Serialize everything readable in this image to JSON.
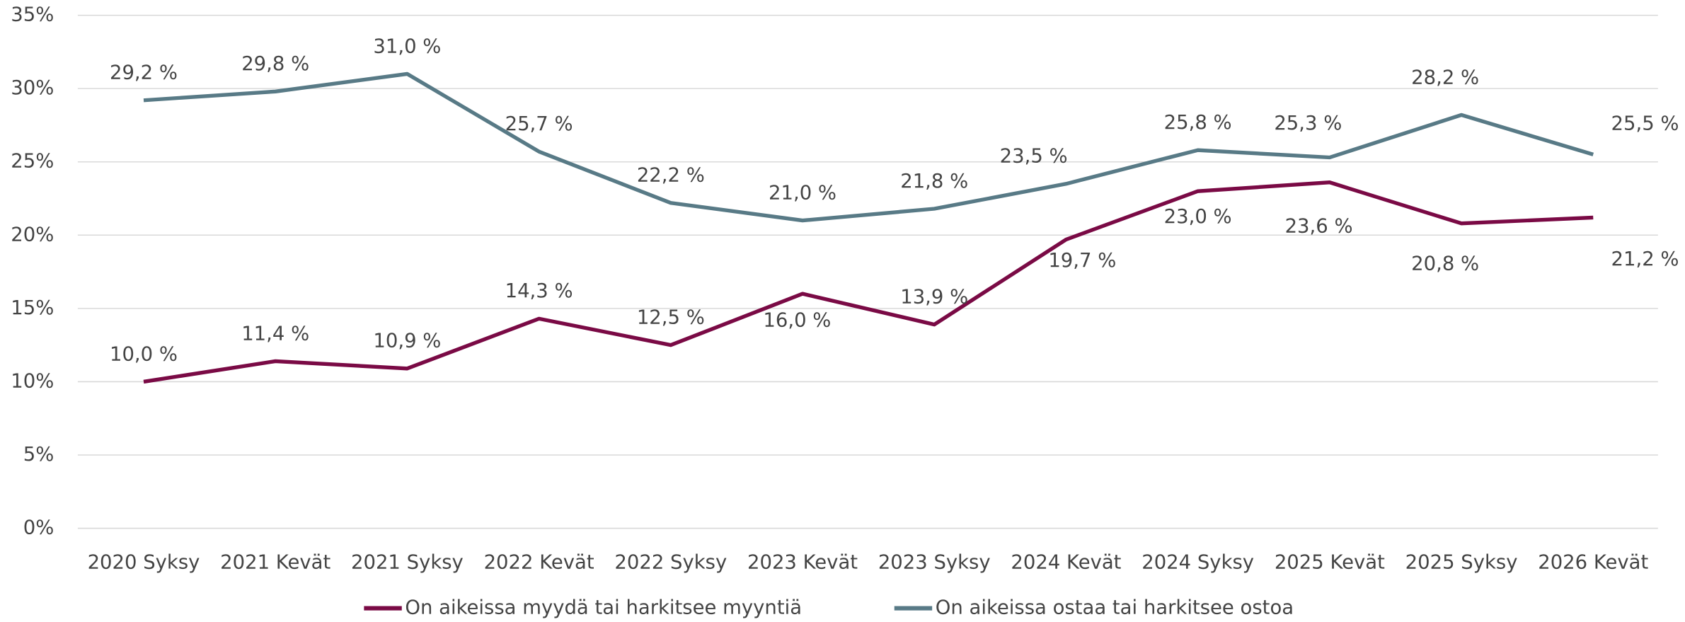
{
  "chart_data": {
    "type": "line",
    "categories": [
      "2020 Syksy",
      "2021 Kevät",
      "2021 Syksy",
      "2022 Kevät",
      "2022 Syksy",
      "2023 Kevät",
      "2023 Syksy",
      "2024 Kevät",
      "2024 Syksy",
      "2025 Kevät",
      "2025 Syksy",
      "2026 Kevät"
    ],
    "series": [
      {
        "name": "On aikeissa myydä tai harkitsee myyntiä",
        "color": "#7a0a45",
        "values": [
          10.0,
          11.4,
          10.9,
          14.3,
          12.5,
          16.0,
          13.9,
          19.7,
          23.0,
          23.6,
          20.8,
          21.2
        ],
        "value_labels": [
          "10,0 %",
          "11,4 %",
          "10,9 %",
          "14,3 %",
          "12,5 %",
          "16,0 %",
          "13,9 %",
          "19,7 %",
          "23,0 %",
          "23,6 %",
          "20,8 %",
          "21,2 %"
        ]
      },
      {
        "name": "On aikeissa ostaa tai harkitsee ostoa",
        "color": "#587a86",
        "values": [
          29.2,
          29.8,
          31.0,
          25.7,
          22.2,
          21.0,
          21.8,
          23.5,
          25.8,
          25.3,
          28.2,
          25.5
        ],
        "value_labels": [
          "29,2 %",
          "29,8 %",
          "31,0 %",
          "25,7 %",
          "22,2 %",
          "21,0 %",
          "21,8 %",
          "23,5 %",
          "25,8 %",
          "25,3 %",
          "28,2 %",
          "25,5 %"
        ]
      }
    ],
    "ylim": [
      0,
      35
    ],
    "yticks": [
      {
        "value": 0,
        "label": "0%"
      },
      {
        "value": 5,
        "label": "5%"
      },
      {
        "value": 10,
        "label": "10%"
      },
      {
        "value": 15,
        "label": "15%"
      },
      {
        "value": 20,
        "label": "20%"
      },
      {
        "value": 25,
        "label": "25%"
      },
      {
        "value": 30,
        "label": "30%"
      },
      {
        "value": 35,
        "label": "35%"
      }
    ],
    "grid": true,
    "legend": "bottom"
  }
}
